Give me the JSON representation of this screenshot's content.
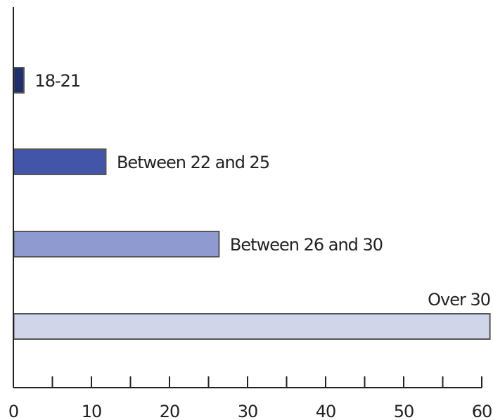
{
  "chart_data": {
    "type": "bar",
    "orientation": "horizontal",
    "categories": [
      "18-21",
      "Between 22 and 25",
      "Between 26 and 30",
      "Over 30"
    ],
    "values": [
      1.3,
      11.8,
      26.3,
      61
    ],
    "bar_colors": [
      "#1f2f6b",
      "#4355a8",
      "#8f9bd0",
      "#d0d5ea"
    ],
    "bar_stroke": "#555555",
    "axis_color": "#222222",
    "xlim": [
      0,
      60
    ],
    "x_ticks": [
      0,
      10,
      20,
      30,
      40,
      50,
      60
    ],
    "x_tick_labels": [
      "0",
      "10",
      "20",
      "30",
      "40",
      "50",
      "60"
    ],
    "minor_ticks_per_major": 2,
    "grid": false,
    "title": "",
    "xlabel": "",
    "ylabel": ""
  }
}
